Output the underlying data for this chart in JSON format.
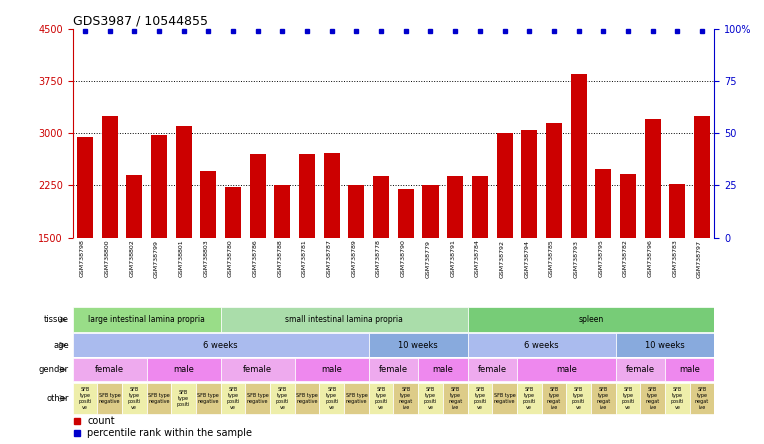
{
  "title": "GDS3987 / 10544855",
  "samples": [
    "GSM738798",
    "GSM738800",
    "GSM738802",
    "GSM738799",
    "GSM738801",
    "GSM738803",
    "GSM738780",
    "GSM738786",
    "GSM738788",
    "GSM738781",
    "GSM738787",
    "GSM738789",
    "GSM738778",
    "GSM738790",
    "GSM738779",
    "GSM738791",
    "GSM738784",
    "GSM738792",
    "GSM738794",
    "GSM738785",
    "GSM738793",
    "GSM738795",
    "GSM738782",
    "GSM738796",
    "GSM738783",
    "GSM738797"
  ],
  "counts": [
    2950,
    3250,
    2400,
    2980,
    3100,
    2450,
    2220,
    2700,
    2260,
    2700,
    2720,
    2250,
    2380,
    2200,
    2250,
    2380,
    2380,
    3000,
    3050,
    3150,
    3850,
    2480,
    2420,
    3200,
    2270,
    3250
  ],
  "ymin": 1500,
  "ymax": 4500,
  "yticks_left": [
    1500,
    2250,
    3000,
    3750,
    4500
  ],
  "yticks_right": [
    0,
    25,
    50,
    75,
    100
  ],
  "bar_color": "#cc0000",
  "dot_color": "#0000cc",
  "axis_color_left": "#cc0000",
  "axis_color_right": "#0000cc",
  "tissue_groups": [
    {
      "label": "large intestinal lamina propria",
      "start": 0,
      "end": 5,
      "color": "#99dd88"
    },
    {
      "label": "small intestinal lamina propria",
      "start": 6,
      "end": 15,
      "color": "#aaddaa"
    },
    {
      "label": "spleen",
      "start": 16,
      "end": 25,
      "color": "#77cc77"
    }
  ],
  "age_groups": [
    {
      "label": "6 weeks",
      "start": 0,
      "end": 11,
      "color": "#aabbee"
    },
    {
      "label": "10 weeks",
      "start": 12,
      "end": 15,
      "color": "#88aadd"
    },
    {
      "label": "6 weeks",
      "start": 16,
      "end": 21,
      "color": "#aabbee"
    },
    {
      "label": "10 weeks",
      "start": 22,
      "end": 25,
      "color": "#88aadd"
    }
  ],
  "gender_groups": [
    {
      "label": "female",
      "start": 0,
      "end": 2,
      "color": "#eeaaee"
    },
    {
      "label": "male",
      "start": 3,
      "end": 5,
      "color": "#ee88ee"
    },
    {
      "label": "female",
      "start": 6,
      "end": 8,
      "color": "#eeaaee"
    },
    {
      "label": "male",
      "start": 9,
      "end": 11,
      "color": "#ee88ee"
    },
    {
      "label": "female",
      "start": 12,
      "end": 13,
      "color": "#eeaaee"
    },
    {
      "label": "male",
      "start": 14,
      "end": 15,
      "color": "#ee88ee"
    },
    {
      "label": "female",
      "start": 16,
      "end": 17,
      "color": "#eeaaee"
    },
    {
      "label": "male",
      "start": 18,
      "end": 21,
      "color": "#ee88ee"
    },
    {
      "label": "female",
      "start": 22,
      "end": 23,
      "color": "#eeaaee"
    },
    {
      "label": "male",
      "start": 24,
      "end": 25,
      "color": "#ee88ee"
    }
  ],
  "other_groups": [
    {
      "label": "SFB\ntype\npositi\nve",
      "start": 0,
      "end": 0,
      "color": "#eeeeaa"
    },
    {
      "label": "SFB type\nnegative",
      "start": 1,
      "end": 1,
      "color": "#ddcc88"
    },
    {
      "label": "SFB\ntype\npositi\nve",
      "start": 2,
      "end": 2,
      "color": "#eeeeaa"
    },
    {
      "label": "SFB type\nnegative",
      "start": 3,
      "end": 3,
      "color": "#ddcc88"
    },
    {
      "label": "SFB\ntype\npositi",
      "start": 4,
      "end": 4,
      "color": "#eeeeaa"
    },
    {
      "label": "SFB type\nnegative",
      "start": 5,
      "end": 5,
      "color": "#ddcc88"
    },
    {
      "label": "SFB\ntype\npositi\nve",
      "start": 6,
      "end": 6,
      "color": "#eeeeaa"
    },
    {
      "label": "SFB type\nnegative",
      "start": 7,
      "end": 7,
      "color": "#ddcc88"
    },
    {
      "label": "SFB\ntype\npositi\nve",
      "start": 8,
      "end": 8,
      "color": "#eeeeaa"
    },
    {
      "label": "SFB type\nnegative",
      "start": 9,
      "end": 9,
      "color": "#ddcc88"
    },
    {
      "label": "SFB\ntype\npositi\nve",
      "start": 10,
      "end": 10,
      "color": "#eeeeaa"
    },
    {
      "label": "SFB type\nnegative",
      "start": 11,
      "end": 11,
      "color": "#ddcc88"
    },
    {
      "label": "SFB\ntype\npositi\nve",
      "start": 12,
      "end": 12,
      "color": "#eeeeaa"
    },
    {
      "label": "SFB\ntype\nnegat\nive",
      "start": 13,
      "end": 13,
      "color": "#ddcc88"
    },
    {
      "label": "SFB\ntype\npositi\nve",
      "start": 14,
      "end": 14,
      "color": "#eeeeaa"
    },
    {
      "label": "SFB\ntype\nnegat\nive",
      "start": 15,
      "end": 15,
      "color": "#ddcc88"
    },
    {
      "label": "SFB\ntype\npositi\nve",
      "start": 16,
      "end": 16,
      "color": "#eeeeaa"
    },
    {
      "label": "SFB type\nnegative",
      "start": 17,
      "end": 17,
      "color": "#ddcc88"
    },
    {
      "label": "SFB\ntype\npositi\nve",
      "start": 18,
      "end": 18,
      "color": "#eeeeaa"
    },
    {
      "label": "SFB\ntype\nnegat\nive",
      "start": 19,
      "end": 19,
      "color": "#ddcc88"
    },
    {
      "label": "SFB\ntype\npositi\nve",
      "start": 20,
      "end": 20,
      "color": "#eeeeaa"
    },
    {
      "label": "SFB\ntype\nnegat\nive",
      "start": 21,
      "end": 21,
      "color": "#ddcc88"
    },
    {
      "label": "SFB\ntype\npositi\nve",
      "start": 22,
      "end": 22,
      "color": "#eeeeaa"
    },
    {
      "label": "SFB\ntype\nnegat\nive",
      "start": 23,
      "end": 23,
      "color": "#ddcc88"
    },
    {
      "label": "SFB\ntype\npositi\nve",
      "start": 24,
      "end": 24,
      "color": "#eeeeaa"
    },
    {
      "label": "SFB\ntype\nnegat\nive",
      "start": 25,
      "end": 25,
      "color": "#ddcc88"
    }
  ],
  "row_labels": [
    "tissue",
    "age",
    "gender",
    "other"
  ],
  "legend_items": [
    {
      "label": "count",
      "color": "#cc0000"
    },
    {
      "label": "percentile rank within the sample",
      "color": "#0000cc"
    }
  ]
}
